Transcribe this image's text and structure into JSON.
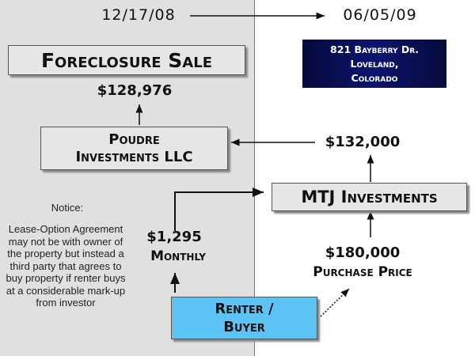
{
  "timeline": {
    "start_date": "12/17/08",
    "end_date": "06/05/09"
  },
  "address": {
    "line1": "821 Bayberry Dr.",
    "line2": "Loveland,",
    "line3": "Colorado"
  },
  "foreclosure": {
    "label": "Foreclosure Sale",
    "price": "$128,976"
  },
  "poudre": {
    "line1": "Poudre",
    "line2": "Investments LLC"
  },
  "mtj": {
    "label": "MTJ Investments",
    "sale_price": "$132,000"
  },
  "monthly": {
    "amount": "$1,295",
    "label": "Monthly"
  },
  "purchase": {
    "amount": "$180,000",
    "label": "Purchase Price"
  },
  "renter": {
    "line1": "Renter /",
    "line2": "Buyer"
  },
  "notice": {
    "title": "Notice:",
    "body": "Lease-Option Agreement may not be with owner of the property but instead a third party that agrees to buy property if renter buys at a considerable mark-up from investor"
  },
  "colors": {
    "left_panel": "#e0e0e0",
    "address_box": "#0a0a5a",
    "renter_box": "#5cc4f4"
  }
}
